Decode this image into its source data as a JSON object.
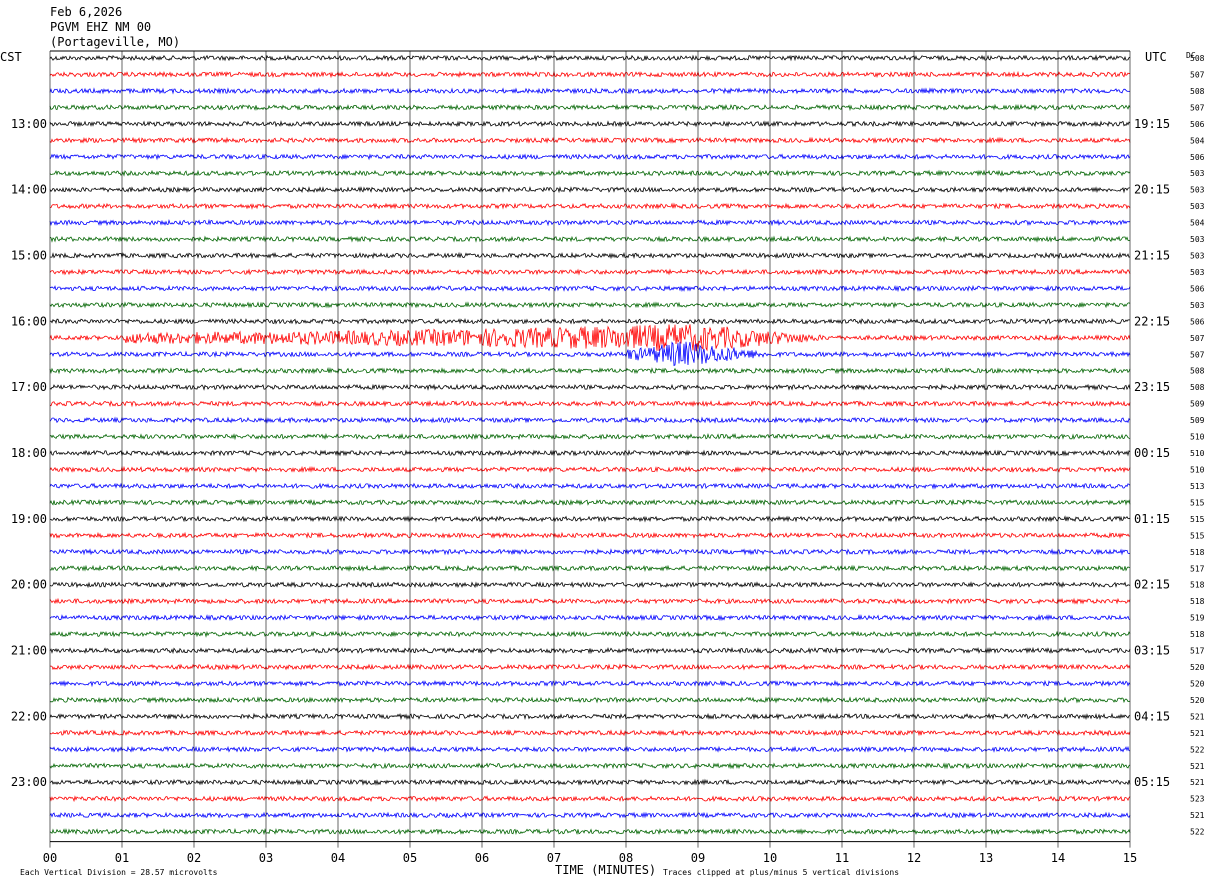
{
  "header": {
    "date": "Feb 6,2026",
    "station": "PGVM EHZ NM 00",
    "location": "(Portageville, MO)"
  },
  "left_zone": "CST",
  "right_zone": "UTC",
  "dc_label": "DC",
  "footer": {
    "scale_note": "Each Vertical Division =   28.57 microvolts",
    "xlabel": "TIME (MINUTES)",
    "clip_note": "Traces clipped at plus/minus 5 vertical divisions"
  },
  "colors": {
    "cycle": [
      "#000000",
      "#ff0000",
      "#0000ff",
      "#006400"
    ],
    "grid": "#000000"
  },
  "chart_data": {
    "type": "line",
    "xlim": [
      0,
      15
    ],
    "x_ticks": [
      "00",
      "01",
      "02",
      "03",
      "04",
      "05",
      "06",
      "07",
      "08",
      "09",
      "10",
      "11",
      "12",
      "13",
      "14",
      "15"
    ],
    "rows_per_hour": 4,
    "row_count": 48,
    "left_hour_labels": [
      "13:00",
      "14:00",
      "15:00",
      "16:00",
      "17:00",
      "18:00",
      "19:00",
      "20:00",
      "21:00",
      "22:00",
      "23:00"
    ],
    "right_hour_labels": [
      "19:15",
      "20:15",
      "21:15",
      "22:15",
      "23:15",
      "00:15",
      "01:15",
      "02:15",
      "03:15",
      "04:15",
      "05:15"
    ],
    "dc_offsets": [
      508,
      507,
      508,
      507,
      506,
      504,
      506,
      503,
      503,
      503,
      504,
      503,
      503,
      503,
      506,
      503,
      506,
      507,
      507,
      508,
      508,
      509,
      509,
      510,
      510,
      510,
      513,
      515,
      515,
      515,
      518,
      517,
      518,
      518,
      519,
      518,
      517,
      520,
      520,
      520,
      521,
      521,
      522,
      521,
      521,
      523,
      521,
      522
    ],
    "events": [
      {
        "row": 17,
        "start_min": 1.0,
        "end_min": 10.8,
        "peak_min": 8.9
      },
      {
        "row": 18,
        "start_min": 8.0,
        "end_min": 10.0,
        "peak_min": 8.7
      }
    ]
  }
}
